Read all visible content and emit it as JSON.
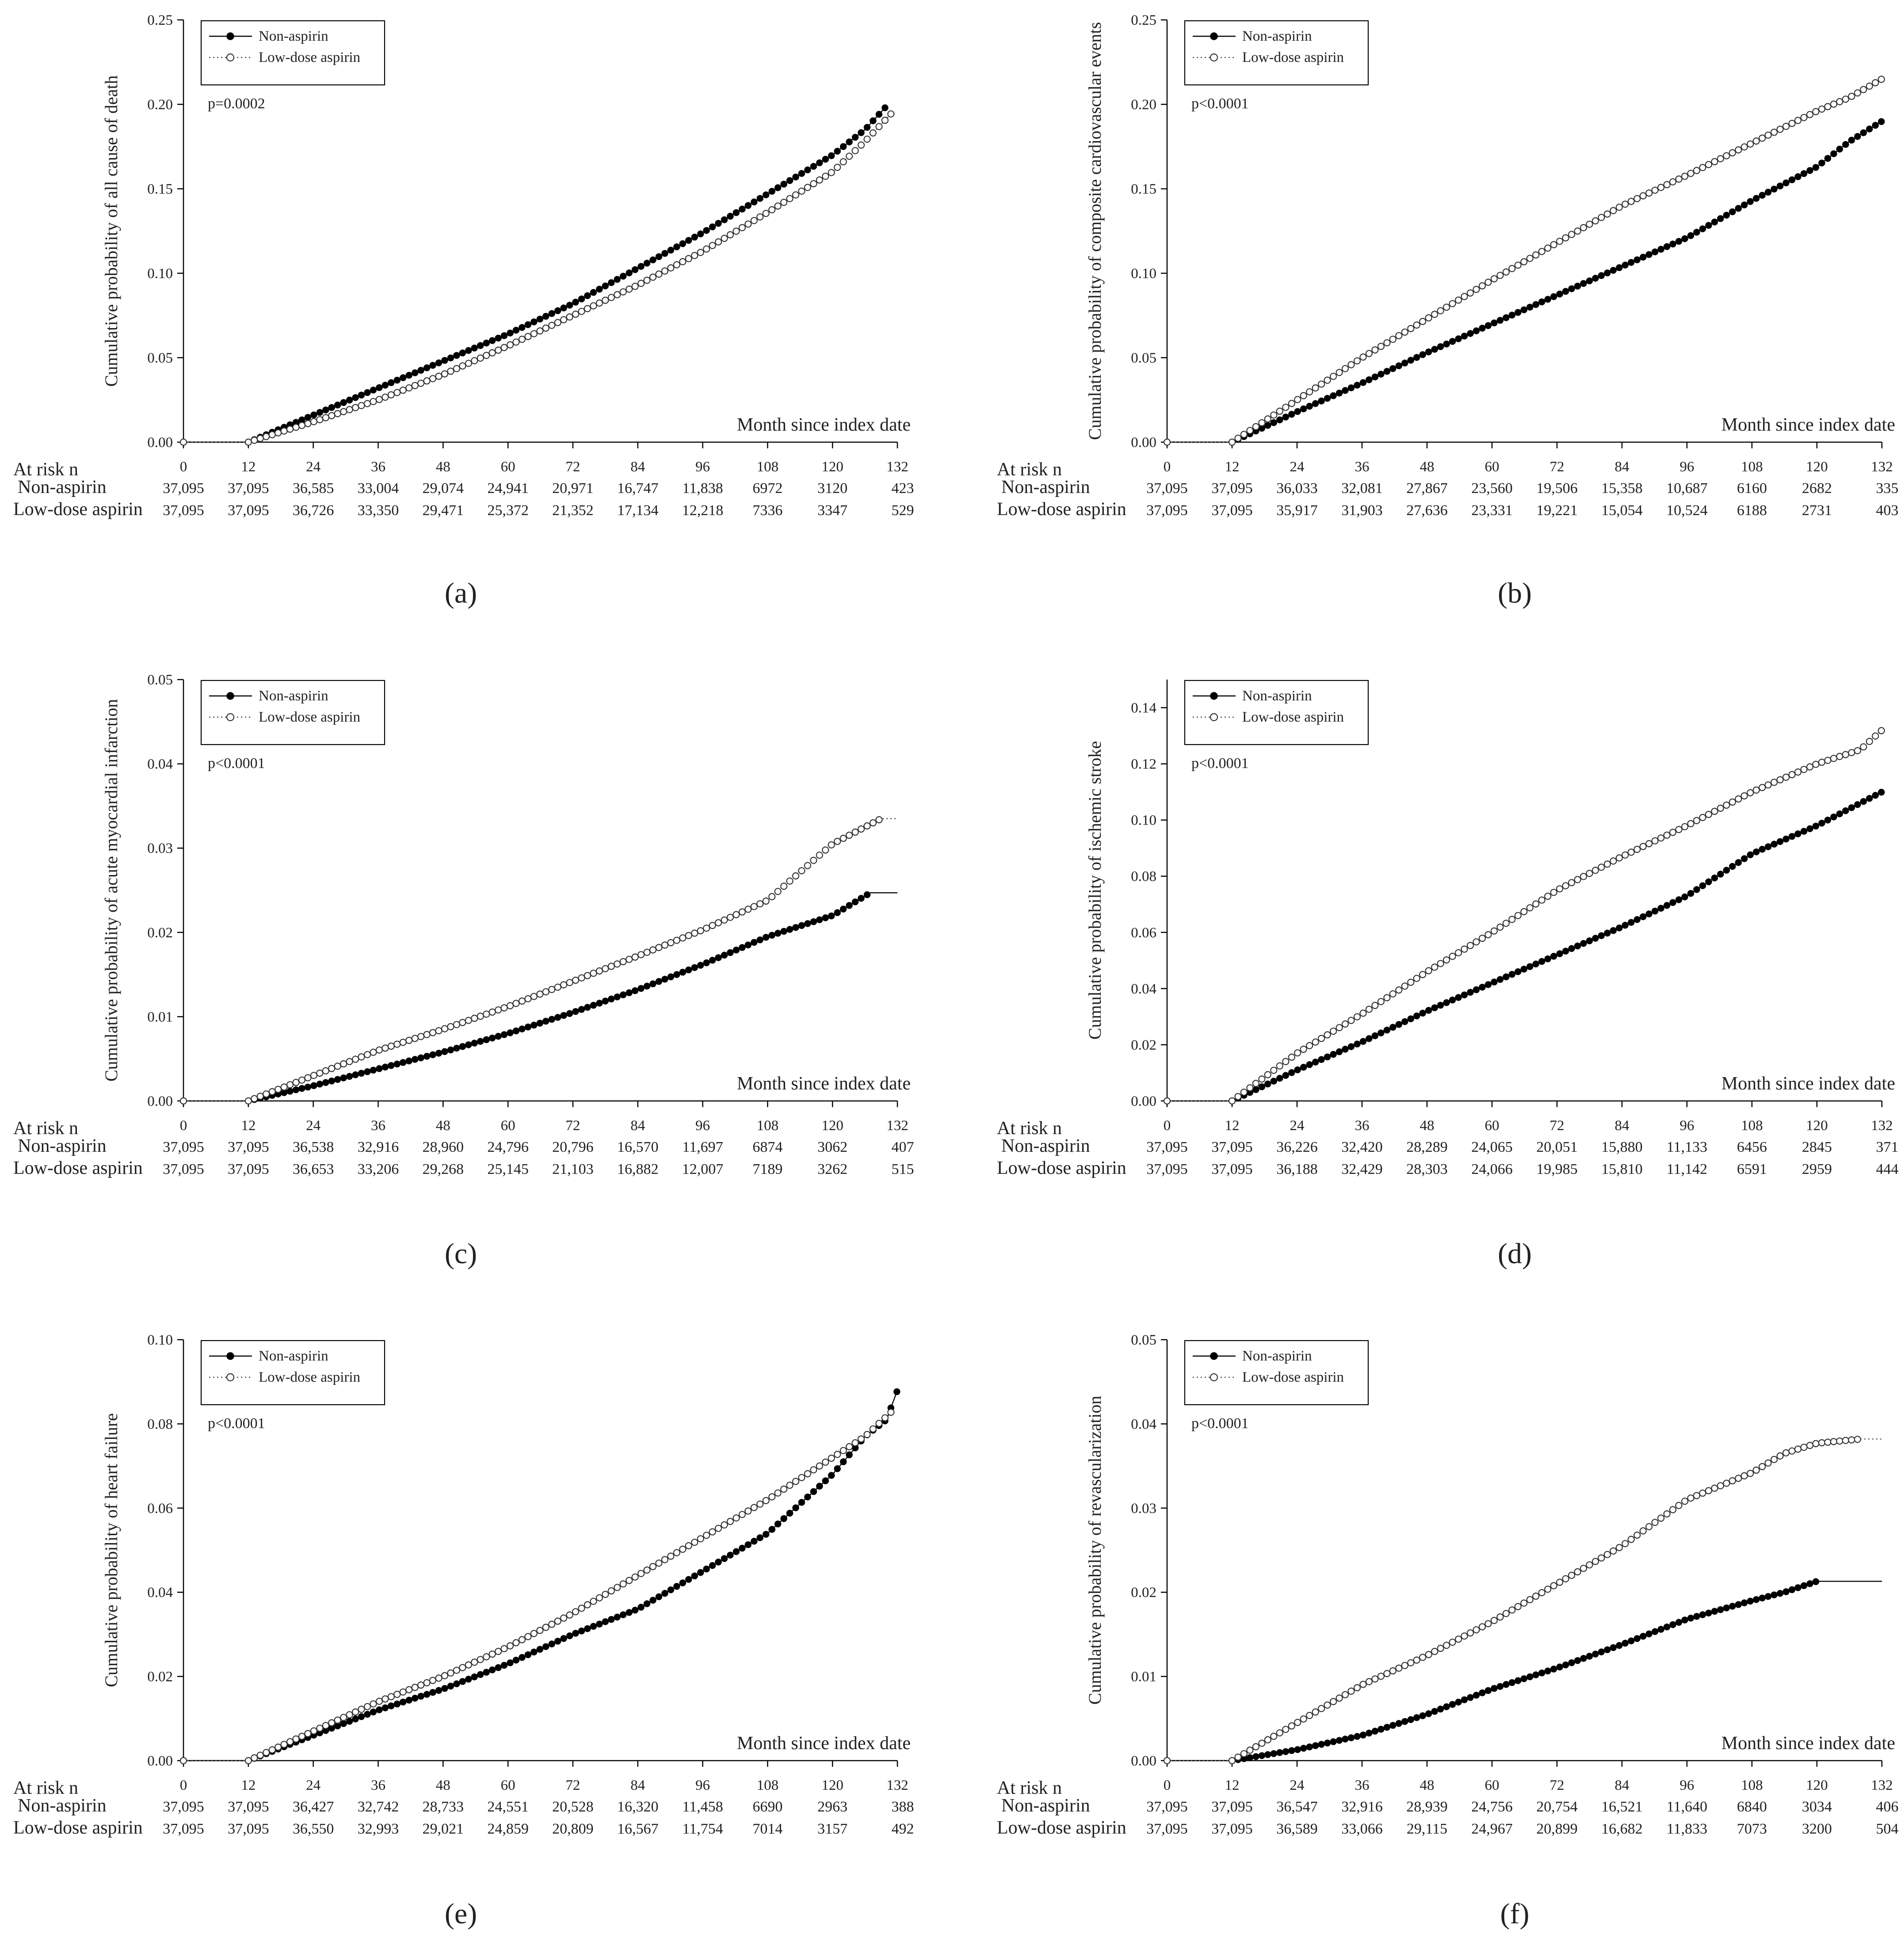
{
  "chart_data": [
    {
      "type": "line",
      "panel_label": "a",
      "ylabel": "Cumulative probability of all cause of death",
      "xlabel": "Month since index date",
      "p_value": "p=0.0002",
      "xlim": [
        0,
        132
      ],
      "ylim": [
        0,
        0.25
      ],
      "x_ticks": [
        0,
        12,
        24,
        36,
        48,
        60,
        72,
        84,
        96,
        108,
        120,
        132
      ],
      "y_ticks": [
        "0.00",
        "0.05",
        "0.10",
        "0.15",
        "0.20",
        "0.25"
      ],
      "y_tick_values": [
        0,
        0.05,
        0.1,
        0.15,
        0.2,
        0.25
      ],
      "legend": [
        "Non-aspirin",
        "Low-dose aspirin"
      ],
      "series": [
        {
          "name": "Non-aspirin",
          "style": "filled",
          "x": [
            0,
            12,
            24,
            36,
            48,
            60,
            72,
            84,
            96,
            108,
            120,
            126,
            130
          ],
          "y": [
            0,
            0,
            0.016,
            0.032,
            0.048,
            0.064,
            0.082,
            0.103,
            0.124,
            0.147,
            0.17,
            0.185,
            0.199
          ]
        },
        {
          "name": "Low-dose aspirin",
          "style": "open",
          "x": [
            0,
            12,
            24,
            36,
            48,
            60,
            72,
            84,
            96,
            108,
            120,
            126,
            131
          ],
          "y": [
            0,
            0,
            0.012,
            0.025,
            0.04,
            0.057,
            0.075,
            0.093,
            0.113,
            0.136,
            0.16,
            0.178,
            0.195
          ]
        }
      ],
      "at_risk": {
        "heading": "At risk n",
        "rows": [
          {
            "label": "Non-aspirin",
            "values": [
              "37,095",
              "37,095",
              "36,585",
              "33,004",
              "29,074",
              "24,941",
              "20,971",
              "16,747",
              "11,838",
              "6972",
              "3120",
              "423"
            ]
          },
          {
            "label": "Low-dose aspirin",
            "values": [
              "37,095",
              "37,095",
              "36,726",
              "33,350",
              "29,471",
              "25,372",
              "21,352",
              "17,134",
              "12,218",
              "7336",
              "3347",
              "529"
            ]
          }
        ]
      }
    },
    {
      "type": "line",
      "panel_label": "b",
      "ylabel": "Cumulative probability of composite cardiovascular events",
      "xlabel": "Month since index date",
      "p_value": "p<0.0001",
      "xlim": [
        0,
        132
      ],
      "ylim": [
        0,
        0.25
      ],
      "x_ticks": [
        0,
        12,
        24,
        36,
        48,
        60,
        72,
        84,
        96,
        108,
        120,
        132
      ],
      "y_ticks": [
        "0.00",
        "0.05",
        "0.10",
        "0.15",
        "0.20",
        "0.25"
      ],
      "y_tick_values": [
        0,
        0.05,
        0.1,
        0.15,
        0.2,
        0.25
      ],
      "legend": [
        "Non-aspirin",
        "Low-dose aspirin"
      ],
      "series": [
        {
          "name": "Non-aspirin",
          "style": "filled",
          "x": [
            0,
            12,
            24,
            36,
            48,
            60,
            72,
            84,
            96,
            108,
            120,
            126,
            132
          ],
          "y": [
            0,
            0,
            0.018,
            0.035,
            0.053,
            0.07,
            0.087,
            0.104,
            0.121,
            0.143,
            0.163,
            0.178,
            0.19
          ]
        },
        {
          "name": "Low-dose aspirin",
          "style": "open",
          "x": [
            0,
            12,
            24,
            36,
            48,
            60,
            72,
            84,
            96,
            108,
            120,
            126,
            132
          ],
          "y": [
            0,
            0,
            0.025,
            0.05,
            0.073,
            0.096,
            0.118,
            0.14,
            0.158,
            0.177,
            0.196,
            0.204,
            0.215
          ]
        }
      ],
      "at_risk": {
        "heading": "At risk n",
        "rows": [
          {
            "label": "Non-aspirin",
            "values": [
              "37,095",
              "37,095",
              "36,033",
              "32,081",
              "27,867",
              "23,560",
              "19,506",
              "15,358",
              "10,687",
              "6160",
              "2682",
              "335"
            ]
          },
          {
            "label": "Low-dose aspirin",
            "values": [
              "37,095",
              "37,095",
              "35,917",
              "31,903",
              "27,636",
              "23,331",
              "19,221",
              "15,054",
              "10,524",
              "6188",
              "2731",
              "403"
            ]
          }
        ]
      }
    },
    {
      "type": "line",
      "panel_label": "c",
      "ylabel": "Cumulative probability of acute myocardial infarction",
      "xlabel": "Month since index date",
      "p_value": "p<0.0001",
      "xlim": [
        0,
        132
      ],
      "ylim": [
        0,
        0.05
      ],
      "x_ticks": [
        0,
        12,
        24,
        36,
        48,
        60,
        72,
        84,
        96,
        108,
        120,
        132
      ],
      "y_ticks": [
        "0.00",
        "0.01",
        "0.02",
        "0.03",
        "0.04",
        "0.05"
      ],
      "y_tick_values": [
        0,
        0.01,
        0.02,
        0.03,
        0.04,
        0.05
      ],
      "legend": [
        "Non-aspirin",
        "Low-dose aspirin"
      ],
      "series": [
        {
          "name": "Non-aspirin",
          "style": "filled",
          "x": [
            0,
            12,
            24,
            36,
            48,
            60,
            72,
            84,
            96,
            108,
            120,
            127,
            132
          ],
          "y": [
            0,
            0,
            0.0018,
            0.0038,
            0.0058,
            0.008,
            0.0105,
            0.0132,
            0.0162,
            0.0195,
            0.022,
            0.0247,
            0.0247
          ]
        },
        {
          "name": "Low-dose aspirin",
          "style": "open",
          "x": [
            0,
            12,
            24,
            36,
            48,
            60,
            72,
            84,
            96,
            108,
            120,
            129,
            132
          ],
          "y": [
            0,
            0,
            0.003,
            0.006,
            0.0085,
            0.0112,
            0.0142,
            0.0172,
            0.0203,
            0.0238,
            0.0305,
            0.0335,
            0.0335
          ]
        }
      ],
      "at_risk": {
        "heading": "At risk n",
        "rows": [
          {
            "label": "Non-aspirin",
            "values": [
              "37,095",
              "37,095",
              "36,538",
              "32,916",
              "28,960",
              "24,796",
              "20,796",
              "16,570",
              "11,697",
              "6874",
              "3062",
              "407"
            ]
          },
          {
            "label": "Low-dose aspirin",
            "values": [
              "37,095",
              "37,095",
              "36,653",
              "33,206",
              "29,268",
              "25,145",
              "21,103",
              "16,882",
              "12,007",
              "7189",
              "3262",
              "515"
            ]
          }
        ]
      }
    },
    {
      "type": "line",
      "panel_label": "d",
      "ylabel": "Cumulative probability of ischemic stroke",
      "xlabel": "Month since index date",
      "p_value": "p<0.0001",
      "xlim": [
        0,
        132
      ],
      "ylim": [
        0,
        0.15
      ],
      "x_ticks": [
        0,
        12,
        24,
        36,
        48,
        60,
        72,
        84,
        96,
        108,
        120,
        132
      ],
      "y_ticks": [
        "0.00",
        "0.02",
        "0.04",
        "0.06",
        "0.08",
        "0.10",
        "0.12",
        "0.14"
      ],
      "y_tick_values": [
        0,
        0.02,
        0.04,
        0.06,
        0.08,
        0.1,
        0.12,
        0.14
      ],
      "legend": [
        "Non-aspirin",
        "Low-dose aspirin"
      ],
      "series": [
        {
          "name": "Non-aspirin",
          "style": "filled",
          "x": [
            0,
            12,
            24,
            36,
            48,
            60,
            72,
            84,
            96,
            108,
            120,
            128,
            132
          ],
          "y": [
            0,
            0,
            0.011,
            0.021,
            0.032,
            0.042,
            0.052,
            0.062,
            0.073,
            0.088,
            0.098,
            0.106,
            0.11
          ]
        },
        {
          "name": "Low-dose aspirin",
          "style": "open",
          "x": [
            0,
            12,
            24,
            36,
            48,
            60,
            72,
            84,
            96,
            108,
            120,
            128,
            132
          ],
          "y": [
            0,
            0,
            0.017,
            0.031,
            0.046,
            0.06,
            0.075,
            0.087,
            0.098,
            0.11,
            0.12,
            0.125,
            0.132
          ]
        }
      ],
      "at_risk": {
        "heading": "At risk n",
        "rows": [
          {
            "label": "Non-aspirin",
            "values": [
              "37,095",
              "37,095",
              "36,226",
              "32,420",
              "28,289",
              "24,065",
              "20,051",
              "15,880",
              "11,133",
              "6456",
              "2845",
              "371"
            ]
          },
          {
            "label": "Low-dose aspirin",
            "values": [
              "37,095",
              "37,095",
              "36,188",
              "32,429",
              "28,303",
              "24,066",
              "19,985",
              "15,810",
              "11,142",
              "6591",
              "2959",
              "444"
            ]
          }
        ]
      }
    },
    {
      "type": "line",
      "panel_label": "e",
      "ylabel": "Cumulative probability of  heart failure",
      "xlabel": "Month since index date",
      "p_value": "p<0.0001",
      "xlim": [
        0,
        132
      ],
      "ylim": [
        0,
        0.1
      ],
      "x_ticks": [
        0,
        12,
        24,
        36,
        48,
        60,
        72,
        84,
        96,
        108,
        120,
        132
      ],
      "y_ticks": [
        "0.00",
        "0.02",
        "0.04",
        "0.06",
        "0.08",
        "0.10"
      ],
      "y_tick_values": [
        0,
        0.02,
        0.04,
        0.06,
        0.08,
        0.1
      ],
      "legend": [
        "Non-aspirin",
        "Low-dose aspirin"
      ],
      "series": [
        {
          "name": "Non-aspirin",
          "style": "filled",
          "x": [
            0,
            12,
            24,
            36,
            48,
            60,
            72,
            84,
            96,
            108,
            120,
            126,
            130,
            132
          ],
          "y": [
            0,
            0,
            0.006,
            0.012,
            0.017,
            0.023,
            0.03,
            0.036,
            0.045,
            0.054,
            0.068,
            0.077,
            0.081,
            0.088
          ]
        },
        {
          "name": "Low-dose aspirin",
          "style": "open",
          "x": [
            0,
            12,
            24,
            36,
            48,
            60,
            72,
            84,
            96,
            108,
            120,
            126,
            131
          ],
          "y": [
            0,
            0,
            0.007,
            0.014,
            0.02,
            0.027,
            0.035,
            0.044,
            0.053,
            0.062,
            0.072,
            0.077,
            0.083
          ]
        }
      ],
      "at_risk": {
        "heading": "At risk n",
        "rows": [
          {
            "label": "Non-aspirin",
            "values": [
              "37,095",
              "37,095",
              "36,427",
              "32,742",
              "28,733",
              "24,551",
              "20,528",
              "16,320",
              "11,458",
              "6690",
              "2963",
              "388"
            ]
          },
          {
            "label": "Low-dose aspirin",
            "values": [
              "37,095",
              "37,095",
              "36,550",
              "32,993",
              "29,021",
              "24,859",
              "20,809",
              "16,567",
              "11,754",
              "7014",
              "3157",
              "492"
            ]
          }
        ]
      }
    },
    {
      "type": "line",
      "panel_label": "f",
      "ylabel": "Cumulative probability of  revascularization",
      "xlabel": "Month since index date",
      "p_value": "p<0.0001",
      "xlim": [
        0,
        132
      ],
      "ylim": [
        0,
        0.05
      ],
      "x_ticks": [
        0,
        12,
        24,
        36,
        48,
        60,
        72,
        84,
        96,
        108,
        120,
        132
      ],
      "y_ticks": [
        "0.00",
        "0.01",
        "0.02",
        "0.03",
        "0.04",
        "0.05"
      ],
      "y_tick_values": [
        0,
        0.01,
        0.02,
        0.03,
        0.04,
        0.05
      ],
      "legend": [
        "Non-aspirin",
        "Low-dose aspirin"
      ],
      "series": [
        {
          "name": "Non-aspirin",
          "style": "filled",
          "x": [
            0,
            12,
            24,
            36,
            48,
            60,
            72,
            84,
            96,
            108,
            114,
            120,
            132
          ],
          "y": [
            0,
            0,
            0.0013,
            0.003,
            0.0055,
            0.0085,
            0.011,
            0.0138,
            0.0168,
            0.019,
            0.02,
            0.0213,
            0.0213
          ]
        },
        {
          "name": "Low-dose aspirin",
          "style": "open",
          "x": [
            0,
            12,
            24,
            36,
            48,
            60,
            72,
            84,
            96,
            108,
            114,
            120,
            128,
            132
          ],
          "y": [
            0,
            0,
            0.0045,
            0.009,
            0.0125,
            0.0165,
            0.021,
            0.0255,
            0.031,
            0.0342,
            0.0365,
            0.0377,
            0.0382,
            0.0382
          ]
        }
      ],
      "at_risk": {
        "heading": "At risk n",
        "rows": [
          {
            "label": "Non-aspirin",
            "values": [
              "37,095",
              "37,095",
              "36,547",
              "32,916",
              "28,939",
              "24,756",
              "20,754",
              "16,521",
              "11,640",
              "6840",
              "3034",
              "406"
            ]
          },
          {
            "label": "Low-dose aspirin",
            "values": [
              "37,095",
              "37,095",
              "36,589",
              "33,066",
              "29,115",
              "24,967",
              "20,899",
              "16,682",
              "11,833",
              "7073",
              "3200",
              "504"
            ]
          }
        ]
      }
    }
  ]
}
